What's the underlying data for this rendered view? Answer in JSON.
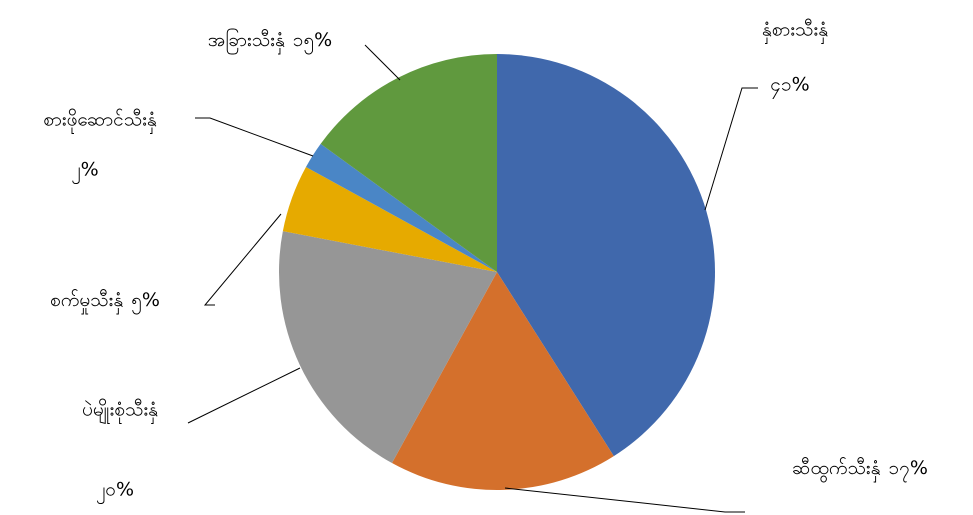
{
  "chart_data": {
    "type": "pie",
    "categories": [
      "နှံစားသီးနှံ",
      "ဆီထွက်သီးနှံ",
      "ပဲမျိုးစုံသီးနှံ",
      "စက်မှုသီးနှံ",
      "စားဖိုဆောင်သီးနှံ",
      "အခြားသီးနှံ"
    ],
    "values": [
      41,
      17,
      20,
      5,
      2,
      15
    ],
    "value_labels": [
      "၄၁%",
      "၁၇%",
      "၂၀%",
      "၅%",
      "၂%",
      "၁၅%"
    ],
    "colors": [
      "#4068ac",
      "#d4702c",
      "#969696",
      "#e6aa00",
      "#4a86c6",
      "#60993e"
    ]
  }
}
